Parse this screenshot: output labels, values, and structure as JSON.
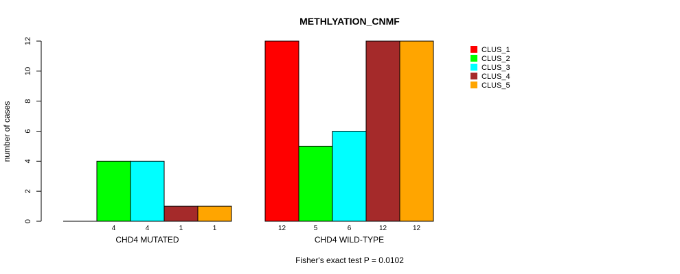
{
  "chart_data": {
    "type": "bar",
    "title": "METHLYATION_CNMF",
    "ylabel": "number of cases",
    "ylim": [
      0,
      12
    ],
    "yticks": [
      "0",
      "2",
      "4",
      "6",
      "8",
      "10",
      "12"
    ],
    "groups": [
      "CHD4 MUTATED",
      "CHD4 WILD-TYPE"
    ],
    "series": [
      {
        "name": "CLUS_1",
        "color": "#ff0000",
        "values": [
          0,
          12
        ]
      },
      {
        "name": "CLUS_2",
        "color": "#00ff00",
        "values": [
          4,
          5
        ]
      },
      {
        "name": "CLUS_3",
        "color": "#00ffff",
        "values": [
          4,
          6
        ]
      },
      {
        "name": "CLUS_4",
        "color": "#a52a2a",
        "values": [
          1,
          12
        ]
      },
      {
        "name": "CLUS_5",
        "color": "#ffa500",
        "values": [
          1,
          12
        ]
      }
    ],
    "bar_labels": [
      [
        "",
        "4",
        "4",
        "1",
        "1"
      ],
      [
        "12",
        "5",
        "6",
        "12",
        "12"
      ]
    ],
    "footnote": "Fisher's exact test P = 0.0102",
    "legend_position": "top-right",
    "grid": false
  }
}
